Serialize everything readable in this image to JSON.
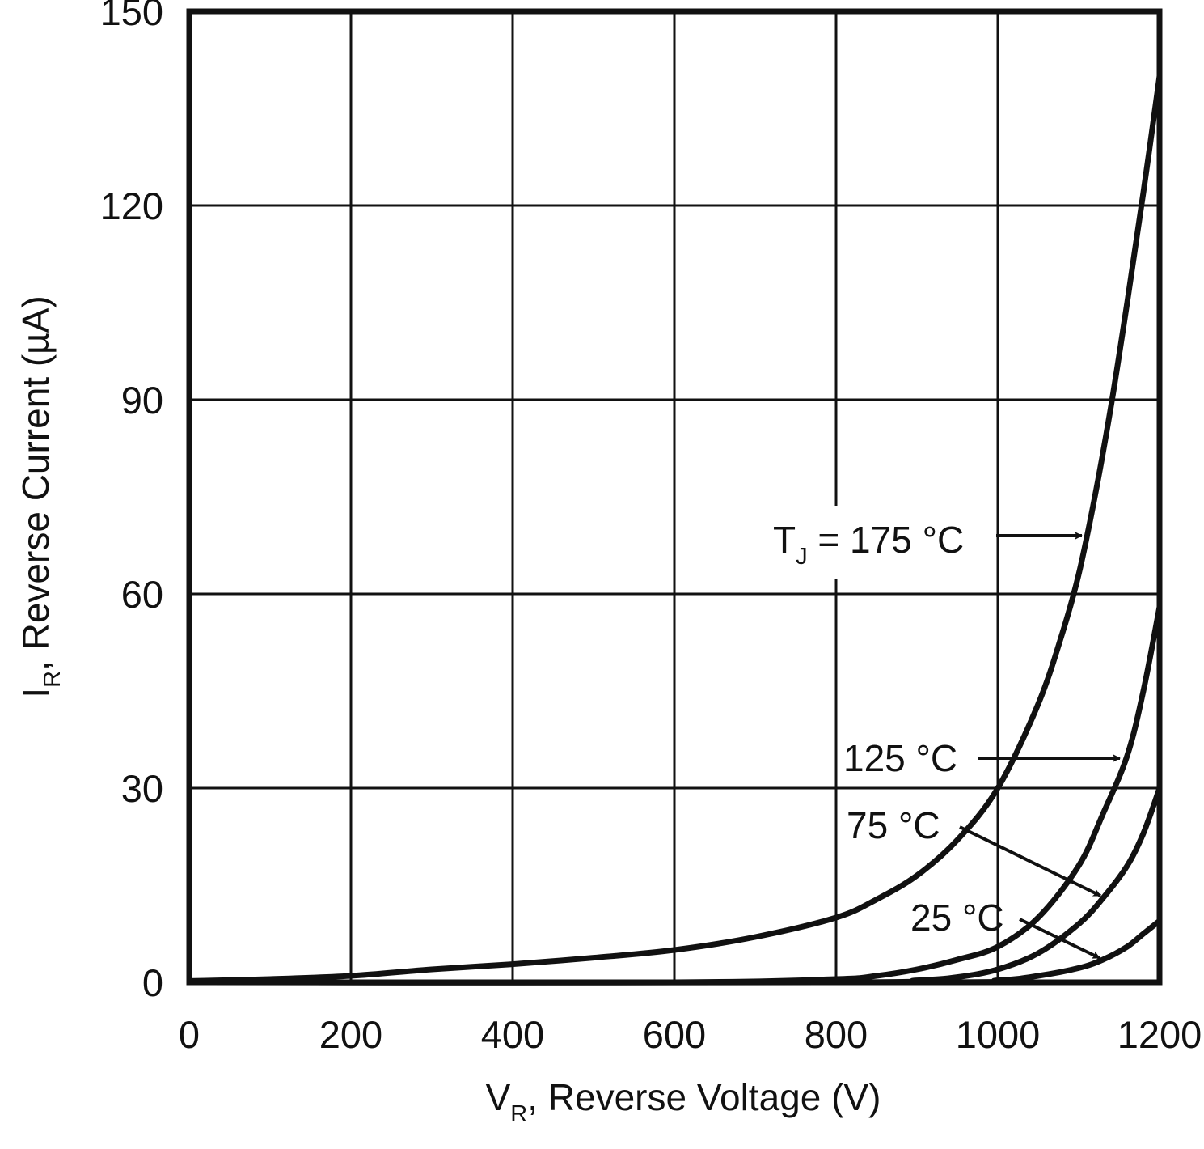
{
  "chart_data": {
    "type": "line",
    "title": "",
    "xlabel": {
      "main": "V",
      "sub": "R",
      "rest": ", Reverse Voltage (V)"
    },
    "ylabel": {
      "main": "I",
      "sub": "R",
      "rest": ", Reverse Current (µA)"
    },
    "xlim": [
      0,
      1200
    ],
    "ylim": [
      0,
      150
    ],
    "xticks": [
      0,
      200,
      400,
      600,
      800,
      1000,
      1200
    ],
    "yticks": [
      0,
      30,
      60,
      90,
      120,
      150
    ],
    "xtick_labels": [
      "0",
      "200",
      "400",
      "600",
      "800",
      "1000",
      "1200"
    ],
    "ytick_labels": [
      "0",
      "30",
      "60",
      "90",
      "120",
      "150"
    ],
    "grid": true,
    "series": [
      {
        "name": "T_J = 175 °C",
        "x": [
          0,
          100,
          200,
          300,
          400,
          500,
          600,
          700,
          800,
          850,
          900,
          950,
          1000,
          1050,
          1080,
          1100,
          1120,
          1140,
          1160,
          1180,
          1200
        ],
        "y": [
          0.2,
          0.5,
          1.0,
          2.0,
          2.8,
          3.8,
          5.0,
          7.0,
          10.0,
          12.8,
          16.5,
          22.0,
          30.0,
          43.0,
          54.0,
          63.0,
          75.0,
          89.0,
          105.0,
          122.0,
          140.0
        ]
      },
      {
        "name": "125 °C",
        "x": [
          0,
          600,
          800,
          850,
          900,
          950,
          1000,
          1050,
          1100,
          1130,
          1160,
          1180,
          1200
        ],
        "y": [
          0,
          0,
          0.5,
          1.0,
          2.0,
          3.5,
          5.5,
          10.0,
          18.0,
          26.0,
          35.0,
          45.0,
          58.0
        ]
      },
      {
        "name": "75 °C",
        "x": [
          0,
          800,
          900,
          950,
          1000,
          1050,
          1100,
          1130,
          1160,
          1180,
          1200
        ],
        "y": [
          0,
          0,
          0.3,
          0.8,
          2.0,
          4.5,
          9.0,
          13.0,
          18.0,
          23.0,
          30.0
        ]
      },
      {
        "name": "25 °C",
        "x": [
          0,
          900,
          1000,
          1050,
          1100,
          1130,
          1160,
          1180,
          1200
        ],
        "y": [
          0,
          0,
          0.3,
          1.0,
          2.2,
          3.5,
          5.5,
          7.5,
          9.5
        ]
      }
    ],
    "annotations": [
      {
        "name": "t175",
        "main": "T",
        "sub": "J",
        "rest": " = 175 °C"
      },
      {
        "name": "t125",
        "text": "125 °C"
      },
      {
        "name": "t75",
        "text": "75 °C"
      },
      {
        "name": "t25",
        "text": "25 °C"
      }
    ]
  }
}
